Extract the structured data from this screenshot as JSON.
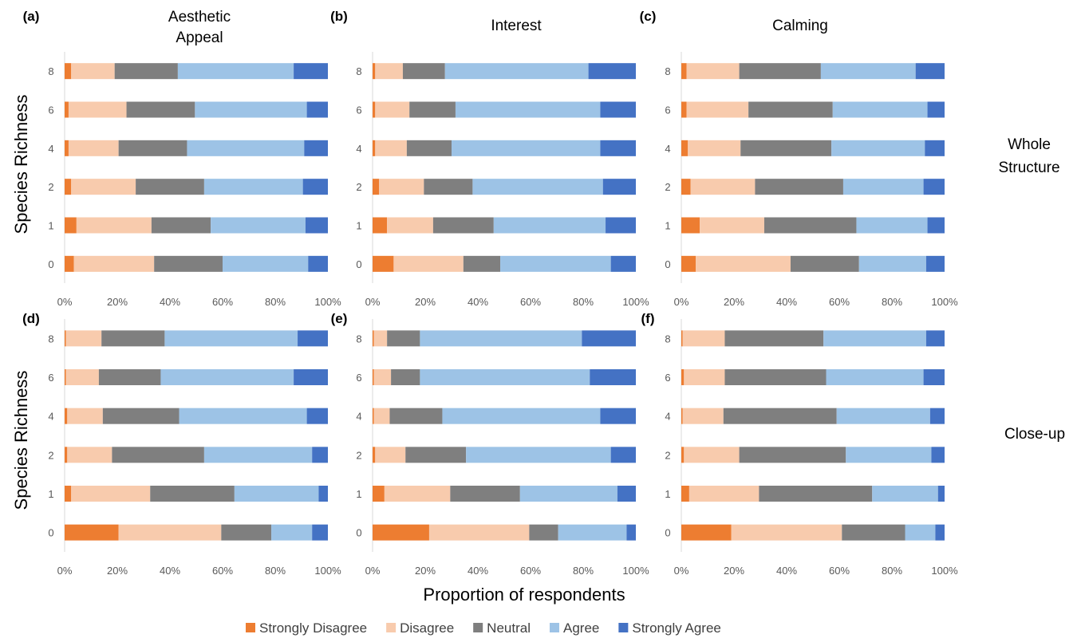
{
  "figure": {
    "ylabel": "Species Richness",
    "xlabel": "Proportion of respondents",
    "column_titles": [
      [
        "Aesthetic",
        "Appeal"
      ],
      [
        "Interest"
      ],
      [
        "Calming"
      ]
    ],
    "row_labels": [
      [
        "Whole",
        "Structure"
      ],
      [
        "Close-up"
      ]
    ],
    "x_ticks": [
      "0%",
      "20%",
      "40%",
      "60%",
      "80%",
      "100%"
    ],
    "categories": [
      "8",
      "6",
      "4",
      "2",
      "1",
      "0"
    ]
  },
  "legend": [
    {
      "name": "Strongly Disagree",
      "color": "#ED7D31"
    },
    {
      "name": "Disagree",
      "color": "#F8CBAD"
    },
    {
      "name": "Neutral",
      "color": "#7F7F7F"
    },
    {
      "name": "Agree",
      "color": "#9DC3E6"
    },
    {
      "name": "Strongly Agree",
      "color": "#4472C4"
    }
  ],
  "chart_data": [
    {
      "type": "bar",
      "panel": "(a)",
      "orientation": "horizontal",
      "stacked": true,
      "categories": [
        "8",
        "6",
        "4",
        "2",
        "1",
        "0"
      ],
      "xlim": [
        0,
        100
      ],
      "series": [
        {
          "name": "Strongly Disagree",
          "values": [
            2.5,
            1.5,
            1.5,
            2.5,
            4.5,
            3.5
          ]
        },
        {
          "name": "Disagree",
          "values": [
            16.5,
            22,
            19,
            24.5,
            28.5,
            30.5
          ]
        },
        {
          "name": "Neutral",
          "values": [
            24,
            26,
            26,
            26,
            22.5,
            26
          ]
        },
        {
          "name": "Agree",
          "values": [
            44,
            42.5,
            44.5,
            37.5,
            36,
            32.5
          ]
        },
        {
          "name": "Strongly Agree",
          "values": [
            13,
            8,
            9,
            9.5,
            8.5,
            7.5
          ]
        }
      ]
    },
    {
      "type": "bar",
      "panel": "(b)",
      "orientation": "horizontal",
      "stacked": true,
      "categories": [
        "8",
        "6",
        "4",
        "2",
        "1",
        "0"
      ],
      "xlim": [
        0,
        100
      ],
      "series": [
        {
          "name": "Strongly Disagree",
          "values": [
            1,
            1,
            1,
            2.5,
            5.5,
            8
          ]
        },
        {
          "name": "Disagree",
          "values": [
            10.5,
            13,
            12,
            17,
            17.5,
            26.5
          ]
        },
        {
          "name": "Neutral",
          "values": [
            16,
            17.5,
            17,
            18.5,
            23,
            14
          ]
        },
        {
          "name": "Agree",
          "values": [
            54.5,
            55,
            56.5,
            49.5,
            42.5,
            42
          ]
        },
        {
          "name": "Strongly Agree",
          "values": [
            18,
            13.5,
            13.5,
            12.5,
            11.5,
            9.5
          ]
        }
      ]
    },
    {
      "type": "bar",
      "panel": "(c)",
      "orientation": "horizontal",
      "stacked": true,
      "categories": [
        "8",
        "6",
        "4",
        "2",
        "1",
        "0"
      ],
      "xlim": [
        0,
        100
      ],
      "series": [
        {
          "name": "Strongly Disagree",
          "values": [
            2,
            2,
            2.5,
            3.5,
            7,
            5.5
          ]
        },
        {
          "name": "Disagree",
          "values": [
            20,
            23.5,
            20,
            24.5,
            24.5,
            36
          ]
        },
        {
          "name": "Neutral",
          "values": [
            31,
            32,
            34.5,
            33.5,
            35,
            26
          ]
        },
        {
          "name": "Agree",
          "values": [
            36,
            36,
            35.5,
            30.5,
            27,
            25.5
          ]
        },
        {
          "name": "Strongly Agree",
          "values": [
            11,
            6.5,
            7.5,
            8,
            6.5,
            7
          ]
        }
      ]
    },
    {
      "type": "bar",
      "panel": "(d)",
      "orientation": "horizontal",
      "stacked": true,
      "categories": [
        "8",
        "6",
        "4",
        "2",
        "1",
        "0"
      ],
      "xlim": [
        0,
        100
      ],
      "series": [
        {
          "name": "Strongly Disagree",
          "values": [
            0.5,
            0.5,
            1,
            1,
            2.5,
            20.5
          ]
        },
        {
          "name": "Disagree",
          "values": [
            13.5,
            12.5,
            13.5,
            17,
            30,
            39
          ]
        },
        {
          "name": "Neutral",
          "values": [
            24,
            23.5,
            29,
            35,
            32,
            19
          ]
        },
        {
          "name": "Agree",
          "values": [
            50.5,
            50.5,
            48.5,
            41,
            32,
            15.5
          ]
        },
        {
          "name": "Strongly Agree",
          "values": [
            11.5,
            13,
            8,
            6,
            3.5,
            6
          ]
        }
      ]
    },
    {
      "type": "bar",
      "panel": "(e)",
      "orientation": "horizontal",
      "stacked": true,
      "categories": [
        "8",
        "6",
        "4",
        "2",
        "1",
        "0"
      ],
      "xlim": [
        0,
        100
      ],
      "series": [
        {
          "name": "Strongly Disagree",
          "values": [
            0.5,
            0.5,
            0.5,
            1,
            4.5,
            21.5
          ]
        },
        {
          "name": "Disagree",
          "values": [
            5,
            6.5,
            6,
            11.5,
            25,
            38
          ]
        },
        {
          "name": "Neutral",
          "values": [
            12.5,
            11,
            20,
            23,
            26.5,
            11
          ]
        },
        {
          "name": "Agree",
          "values": [
            61.5,
            64.5,
            60,
            55,
            37,
            26
          ]
        },
        {
          "name": "Strongly Agree",
          "values": [
            20.5,
            17.5,
            13.5,
            9.5,
            7,
            3.5
          ]
        }
      ]
    },
    {
      "type": "bar",
      "panel": "(f)",
      "orientation": "horizontal",
      "stacked": true,
      "categories": [
        "8",
        "6",
        "4",
        "2",
        "1",
        "0"
      ],
      "xlim": [
        0,
        100
      ],
      "series": [
        {
          "name": "Strongly Disagree",
          "values": [
            0.5,
            1,
            0.5,
            1,
            3,
            19
          ]
        },
        {
          "name": "Disagree",
          "values": [
            16,
            15.5,
            15.5,
            21,
            26.5,
            42
          ]
        },
        {
          "name": "Neutral",
          "values": [
            37.5,
            38.5,
            43,
            40.5,
            43,
            24
          ]
        },
        {
          "name": "Agree",
          "values": [
            39,
            37,
            35.5,
            32.5,
            25,
            11.5
          ]
        },
        {
          "name": "Strongly Agree",
          "values": [
            7,
            8,
            5.5,
            5,
            2.5,
            3.5
          ]
        }
      ]
    }
  ]
}
